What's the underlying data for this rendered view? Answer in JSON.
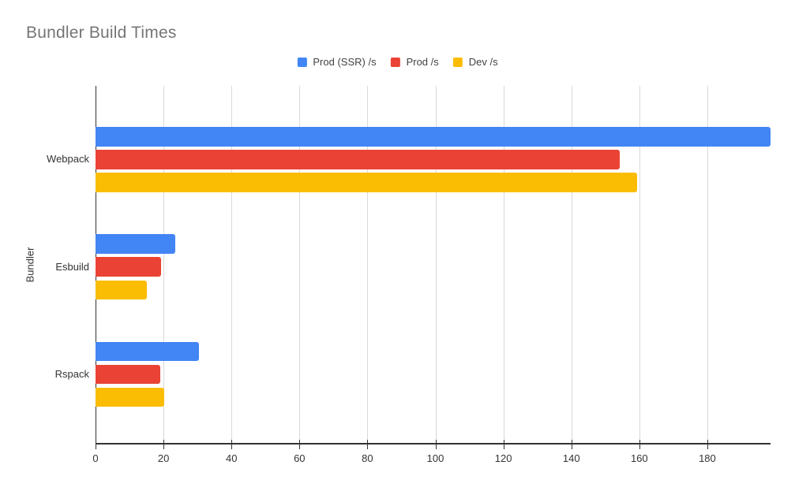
{
  "chart_data": {
    "type": "bar",
    "orientation": "horizontal",
    "title": "Bundler Build Times",
    "xlabel": "",
    "ylabel": "Bundler",
    "categories": [
      "Webpack",
      "Esbuild",
      "Rspack"
    ],
    "series": [
      {
        "name": "Prod (SSR) /s",
        "color": "#4285F4",
        "values": [
          198.6,
          23.5,
          30.5
        ]
      },
      {
        "name": "Prod /s",
        "color": "#EA4335",
        "values": [
          154.3,
          19.2,
          19.0
        ]
      },
      {
        "name": "Dev /s",
        "color": "#FBBC04",
        "values": [
          159.4,
          15.0,
          20.1
        ]
      }
    ],
    "x_ticks": [
      0,
      20,
      40,
      60,
      80,
      100,
      120,
      140,
      160,
      180
    ],
    "xlim": [
      0,
      198.6
    ],
    "grid": true,
    "legend_position": "top-center",
    "colors": {
      "title_text": "#757575",
      "axis_text": "#333333",
      "axis_line": "#333333",
      "gridline": "#d9d9d9",
      "background": "#ffffff"
    }
  }
}
